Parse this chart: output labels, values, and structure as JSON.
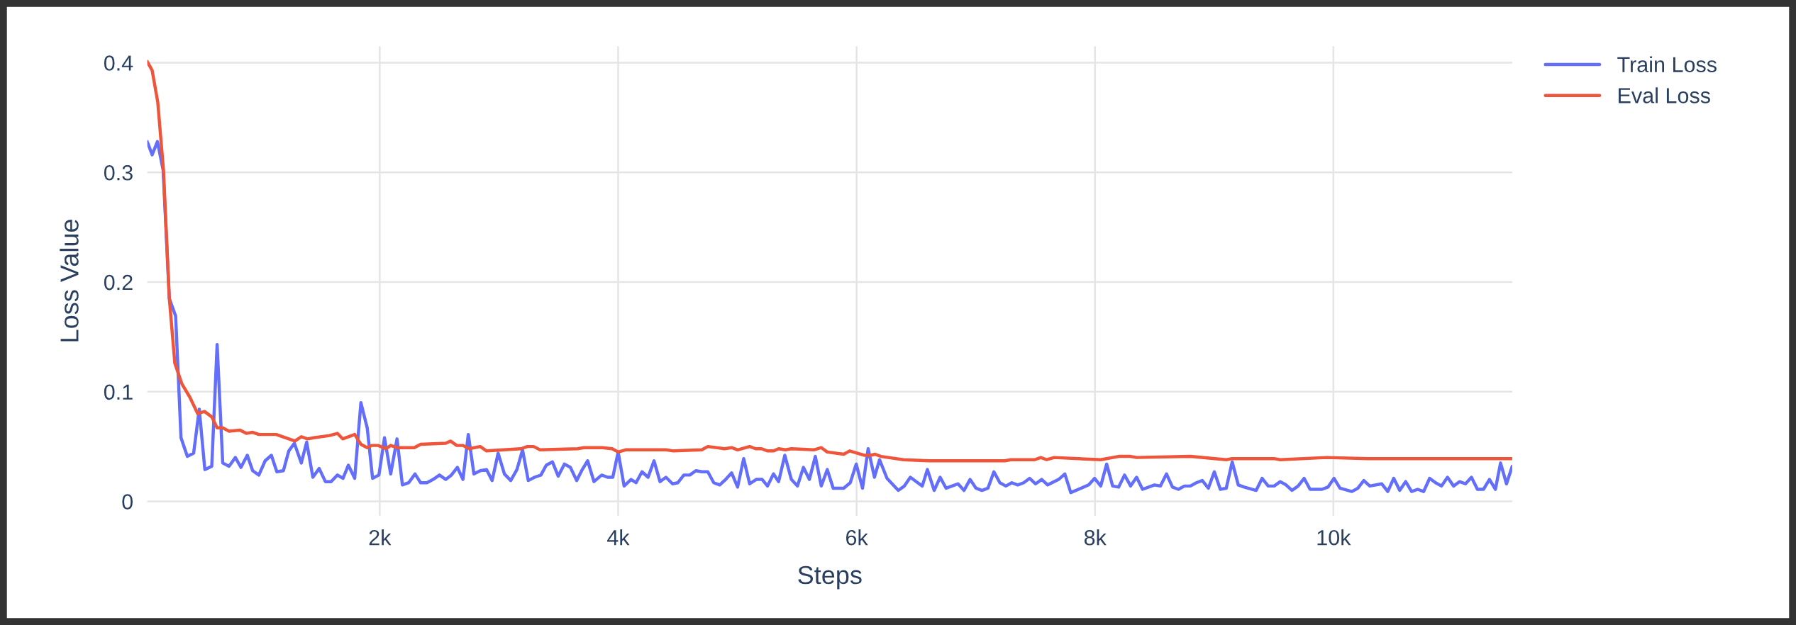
{
  "chart_data": {
    "type": "line",
    "xlabel": "Steps",
    "ylabel": "Loss Value",
    "xlim": [
      50,
      11500
    ],
    "ylim": [
      -0.013,
      0.415
    ],
    "xticks": [
      {
        "value": 2000,
        "label": "2k"
      },
      {
        "value": 4000,
        "label": "4k"
      },
      {
        "value": 6000,
        "label": "6k"
      },
      {
        "value": 8000,
        "label": "8k"
      },
      {
        "value": 10000,
        "label": "10k"
      }
    ],
    "yticks": [
      0,
      0.1,
      0.2,
      0.3,
      0.4
    ],
    "grid": true,
    "legend": "top right",
    "line_style": "solid",
    "series": [
      {
        "name": "Train Loss",
        "color": "#636efa",
        "x": [
          50,
          91,
          135,
          183,
          235,
          288,
          333,
          386,
          439,
          486,
          533,
          591,
          636,
          683,
          736,
          789,
          836,
          889,
          934,
          986,
          1039,
          1091,
          1137,
          1192,
          1237,
          1284,
          1342,
          1387,
          1439,
          1492,
          1544,
          1592,
          1645,
          1692,
          1737,
          1790,
          1842,
          1895,
          1940,
          1993,
          2040,
          2092,
          2145,
          2190,
          2243,
          2296,
          2343,
          2396,
          2448,
          2501,
          2554,
          2601,
          2651,
          2698,
          2743,
          2790,
          2843,
          2896,
          2943,
          2993,
          3046,
          3099,
          3151,
          3198,
          3246,
          3299,
          3352,
          3397,
          3449,
          3497,
          3549,
          3599,
          3652,
          3694,
          3744,
          3797,
          3862,
          3912,
          3955,
          4000,
          4050,
          4108,
          4150,
          4200,
          4251,
          4301,
          4351,
          4401,
          4456,
          4501,
          4551,
          4601,
          4652,
          4702,
          4752,
          4802,
          4852,
          4902,
          4952,
          5002,
          5053,
          5103,
          5158,
          5208,
          5253,
          5303,
          5346,
          5398,
          5453,
          5504,
          5554,
          5604,
          5654,
          5704,
          5754,
          5804,
          5892,
          5947,
          5997,
          6050,
          6097,
          6150,
          6193,
          6255,
          6350,
          6401,
          6451,
          6501,
          6551,
          6594,
          6651,
          6701,
          6751,
          6801,
          6851,
          6901,
          6952,
          7002,
          7052,
          7102,
          7152,
          7202,
          7252,
          7302,
          7352,
          7402,
          7452,
          7502,
          7553,
          7603,
          7695,
          7747,
          7797,
          7947,
          7997,
          8048,
          8098,
          8148,
          8198,
          8248,
          8299,
          8349,
          8399,
          8499,
          8549,
          8600,
          8650,
          8700,
          8750,
          8800,
          8850,
          8900,
          8951,
          9001,
          9051,
          9101,
          9151,
          9202,
          9252,
          9352,
          9402,
          9453,
          9503,
          9553,
          9603,
          9653,
          9704,
          9754,
          9804,
          9904,
          9954,
          10005,
          10055,
          10155,
          10205,
          10255,
          10305,
          10406,
          10456,
          10506,
          10556,
          10606,
          10656,
          10707,
          10757,
          10807,
          10857,
          10907,
          10957,
          11008,
          11058,
          11108,
          11158,
          11208,
          11259,
          11309,
          11359,
          11402,
          11452,
          11500
        ],
        "values": [
          0.328,
          0.316,
          0.328,
          0.302,
          0.185,
          0.169,
          0.058,
          0.041,
          0.044,
          0.084,
          0.029,
          0.032,
          0.143,
          0.035,
          0.032,
          0.04,
          0.031,
          0.042,
          0.028,
          0.024,
          0.037,
          0.042,
          0.027,
          0.028,
          0.046,
          0.053,
          0.035,
          0.054,
          0.022,
          0.03,
          0.018,
          0.018,
          0.024,
          0.021,
          0.033,
          0.021,
          0.09,
          0.067,
          0.021,
          0.024,
          0.058,
          0.025,
          0.057,
          0.015,
          0.017,
          0.025,
          0.017,
          0.017,
          0.02,
          0.024,
          0.02,
          0.024,
          0.031,
          0.02,
          0.061,
          0.025,
          0.028,
          0.029,
          0.019,
          0.044,
          0.025,
          0.019,
          0.029,
          0.047,
          0.019,
          0.022,
          0.024,
          0.033,
          0.036,
          0.023,
          0.034,
          0.031,
          0.019,
          0.028,
          0.037,
          0.018,
          0.024,
          0.022,
          0.022,
          0.045,
          0.014,
          0.02,
          0.017,
          0.027,
          0.022,
          0.037,
          0.018,
          0.022,
          0.016,
          0.017,
          0.024,
          0.024,
          0.028,
          0.027,
          0.027,
          0.017,
          0.015,
          0.02,
          0.026,
          0.013,
          0.039,
          0.016,
          0.02,
          0.02,
          0.014,
          0.025,
          0.018,
          0.042,
          0.02,
          0.014,
          0.031,
          0.02,
          0.041,
          0.014,
          0.029,
          0.012,
          0.012,
          0.017,
          0.034,
          0.012,
          0.048,
          0.022,
          0.038,
          0.021,
          0.01,
          0.014,
          0.022,
          0.018,
          0.014,
          0.029,
          0.01,
          0.022,
          0.012,
          0.014,
          0.016,
          0.01,
          0.02,
          0.012,
          0.01,
          0.012,
          0.027,
          0.017,
          0.014,
          0.017,
          0.015,
          0.017,
          0.021,
          0.016,
          0.02,
          0.015,
          0.02,
          0.025,
          0.008,
          0.015,
          0.021,
          0.014,
          0.034,
          0.014,
          0.013,
          0.024,
          0.014,
          0.022,
          0.011,
          0.015,
          0.014,
          0.025,
          0.013,
          0.011,
          0.014,
          0.014,
          0.017,
          0.019,
          0.012,
          0.027,
          0.011,
          0.012,
          0.036,
          0.015,
          0.013,
          0.01,
          0.021,
          0.014,
          0.014,
          0.018,
          0.015,
          0.01,
          0.014,
          0.021,
          0.011,
          0.011,
          0.013,
          0.021,
          0.012,
          0.009,
          0.012,
          0.019,
          0.014,
          0.016,
          0.009,
          0.021,
          0.01,
          0.018,
          0.009,
          0.011,
          0.009,
          0.021,
          0.017,
          0.014,
          0.022,
          0.014,
          0.018,
          0.016,
          0.022,
          0.011,
          0.011,
          0.02,
          0.011,
          0.035,
          0.016,
          0.032
        ]
      },
      {
        "name": "Eval Loss",
        "color": "#ef553b",
        "x": [
          50,
          91,
          138,
          186,
          235,
          281,
          341,
          407,
          473,
          530,
          591,
          636,
          683,
          736,
          828,
          881,
          934,
          986,
          1131,
          1289,
          1342,
          1394,
          1447,
          1579,
          1645,
          1689,
          1790,
          1842,
          1895,
          1934,
          1987,
          2053,
          2092,
          2145,
          2290,
          2343,
          2554,
          2593,
          2646,
          2698,
          2751,
          2843,
          2896,
          3185,
          3238,
          3291,
          3344,
          3660,
          3712,
          3868,
          3950,
          4000,
          4063,
          4401,
          4464,
          4702,
          4752,
          4890,
          4952,
          5002,
          5103,
          5153,
          5203,
          5253,
          5303,
          5346,
          5404,
          5453,
          5642,
          5704,
          5754,
          5892,
          5942,
          6068,
          6118,
          6155,
          6205,
          6393,
          6606,
          7095,
          7145,
          7245,
          7295,
          7495,
          7545,
          7595,
          7658,
          8048,
          8198,
          8299,
          8349,
          8800,
          9101,
          9151,
          9503,
          9553,
          9942,
          10293,
          11500
        ],
        "values": [
          0.401,
          0.393,
          0.364,
          0.302,
          0.185,
          0.126,
          0.107,
          0.095,
          0.08,
          0.082,
          0.077,
          0.067,
          0.067,
          0.064,
          0.065,
          0.062,
          0.063,
          0.061,
          0.061,
          0.055,
          0.059,
          0.057,
          0.058,
          0.06,
          0.062,
          0.057,
          0.061,
          0.052,
          0.049,
          0.051,
          0.051,
          0.048,
          0.051,
          0.049,
          0.049,
          0.052,
          0.053,
          0.055,
          0.051,
          0.051,
          0.048,
          0.05,
          0.046,
          0.048,
          0.05,
          0.05,
          0.047,
          0.048,
          0.049,
          0.049,
          0.048,
          0.045,
          0.047,
          0.047,
          0.046,
          0.047,
          0.05,
          0.048,
          0.049,
          0.047,
          0.05,
          0.048,
          0.048,
          0.046,
          0.046,
          0.048,
          0.047,
          0.048,
          0.047,
          0.049,
          0.045,
          0.043,
          0.046,
          0.042,
          0.042,
          0.043,
          0.041,
          0.038,
          0.037,
          0.037,
          0.037,
          0.037,
          0.038,
          0.038,
          0.04,
          0.038,
          0.04,
          0.038,
          0.041,
          0.041,
          0.04,
          0.041,
          0.038,
          0.039,
          0.039,
          0.038,
          0.04,
          0.039,
          0.039
        ]
      }
    ]
  }
}
